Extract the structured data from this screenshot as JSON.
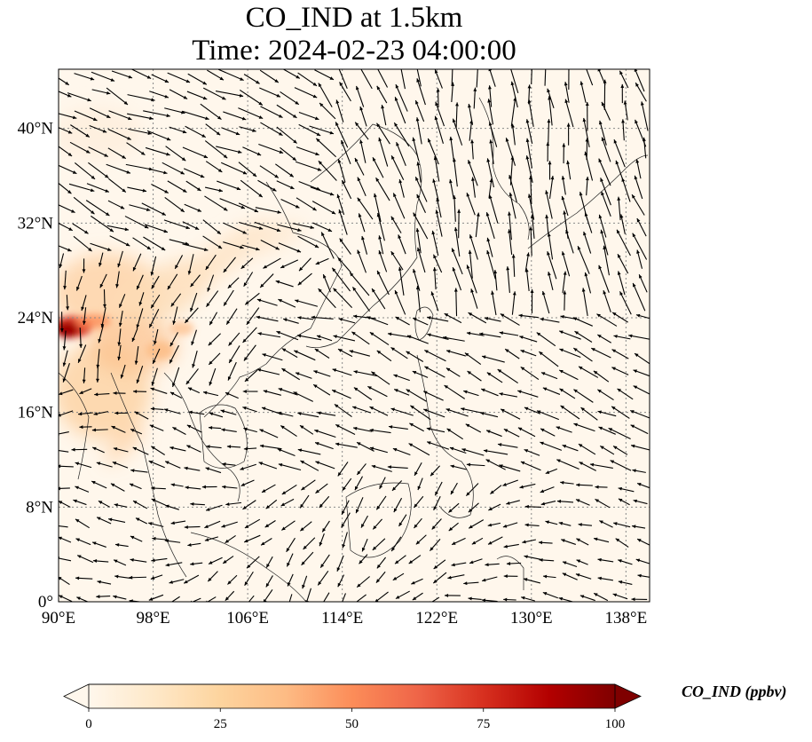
{
  "title": {
    "line1": "CO_IND at 1.5km",
    "line2": "Time: 2024-02-23 04:00:00"
  },
  "map": {
    "projection": "PlateCarree",
    "lon_range": [
      90,
      140
    ],
    "lat_range": [
      0,
      45
    ],
    "gridlines": "dotted",
    "x_ticks": [
      {
        "value": 90,
        "label": "90°E"
      },
      {
        "value": 98,
        "label": "98°E"
      },
      {
        "value": 106,
        "label": "106°E"
      },
      {
        "value": 114,
        "label": "114°E"
      },
      {
        "value": 122,
        "label": "122°E"
      },
      {
        "value": 130,
        "label": "130°E"
      },
      {
        "value": 138,
        "label": "138°E"
      }
    ],
    "y_ticks": [
      {
        "value": 0,
        "label": "0°"
      },
      {
        "value": 8,
        "label": "8°N"
      },
      {
        "value": 16,
        "label": "16°N"
      },
      {
        "value": 24,
        "label": "24°N"
      },
      {
        "value": 32,
        "label": "32°N"
      },
      {
        "value": 40,
        "label": "40°N"
      }
    ],
    "field": "CO_IND concentration",
    "high_concentration_region": "western edge near 24°N / 90°E (Bangladesh–Myanmar), plume extending northeast across southern China",
    "wind_vectors": "overlaid black arrows showing wind direction"
  },
  "colorbar": {
    "label": "CO_IND (ppbv)",
    "colormap": "OrRd",
    "range": [
      0,
      100
    ],
    "extend": "both",
    "ticks": [
      {
        "value": 0,
        "label": "0"
      },
      {
        "value": 25,
        "label": "25"
      },
      {
        "value": 50,
        "label": "50"
      },
      {
        "value": 75,
        "label": "75"
      },
      {
        "value": 100,
        "label": "100"
      }
    ],
    "colors": [
      "#fff7ec",
      "#fee8c8",
      "#fdd49e",
      "#fdbb84",
      "#fc8d59",
      "#ef6548",
      "#d7301f",
      "#b30000",
      "#7f0000"
    ]
  }
}
